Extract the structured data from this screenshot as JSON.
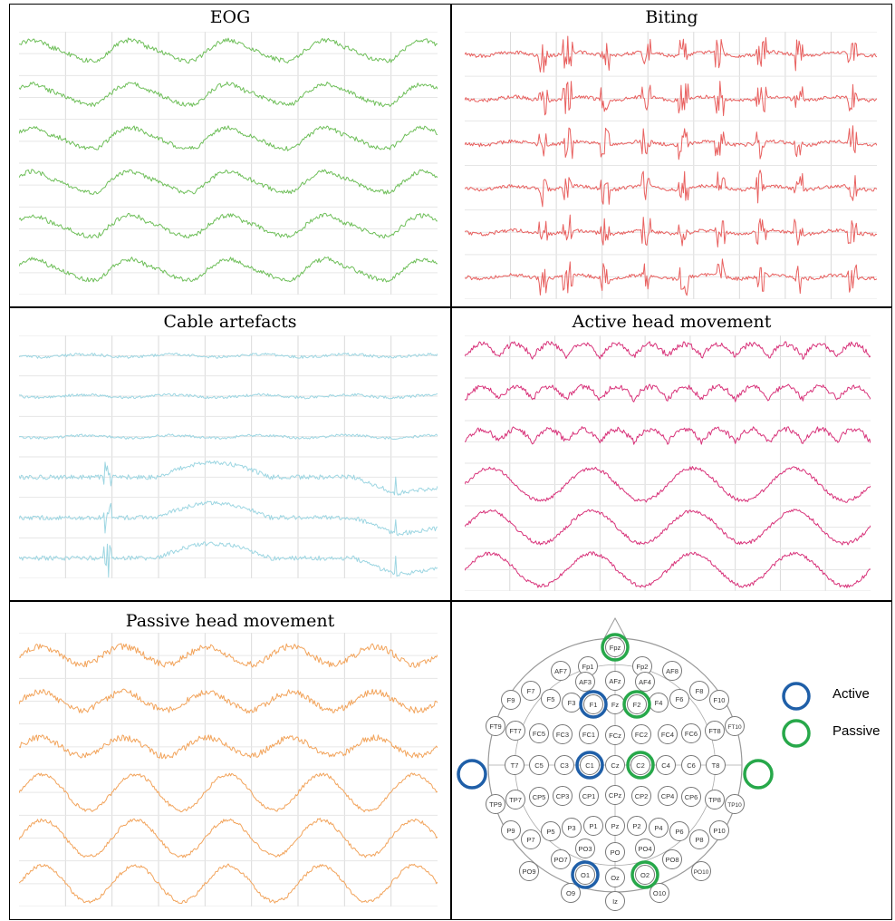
{
  "panels": [
    {
      "title": "EOG",
      "color": "#6fbf5a",
      "style": "eog"
    },
    {
      "title": "Biting",
      "color": "#e8605f",
      "style": "biting"
    },
    {
      "title": "Cable artefacts",
      "color": "#9dd6e2",
      "style": "cable"
    },
    {
      "title": "Active head movement",
      "color": "#d8337a",
      "style": "active"
    },
    {
      "title": "Passive head movement",
      "color": "#f2a45c",
      "style": "passive"
    }
  ],
  "electrodes": {
    "active_color": "#1f5fa8",
    "passive_color": "#27a84a",
    "labels": [
      "Fpz",
      "Fp1",
      "Fp2",
      "AF7",
      "AF3",
      "AFz",
      "AF4",
      "AF8",
      "F9",
      "F7",
      "F5",
      "F3",
      "F1",
      "Fz",
      "F2",
      "F4",
      "F6",
      "F8",
      "F10",
      "FT9",
      "FT7",
      "FC5",
      "FC3",
      "FC1",
      "FCz",
      "FC2",
      "FC4",
      "FC6",
      "FT8",
      "FT10",
      "T7",
      "C5",
      "C3",
      "C1",
      "Cz",
      "C2",
      "C4",
      "C6",
      "T8",
      "TP9",
      "TP7",
      "CP5",
      "CP3",
      "CP1",
      "CPz",
      "CP2",
      "CP4",
      "CP6",
      "TP8",
      "TP10",
      "P9",
      "P7",
      "P5",
      "P3",
      "P1",
      "Pz",
      "P2",
      "P4",
      "P6",
      "P8",
      "P10",
      "PO7",
      "PO3",
      "PO",
      "PO4",
      "PO8",
      "PO9",
      "O1",
      "Oz",
      "O2",
      "PO10",
      "O9",
      "O10",
      "Iz"
    ],
    "active": [
      "F1",
      "C1",
      "O1",
      "left-ear"
    ],
    "passive": [
      "Fpz",
      "F2",
      "C2",
      "O2",
      "right-ear"
    ]
  },
  "legend": {
    "active_label": "Active",
    "passive_label": "Passive"
  }
}
